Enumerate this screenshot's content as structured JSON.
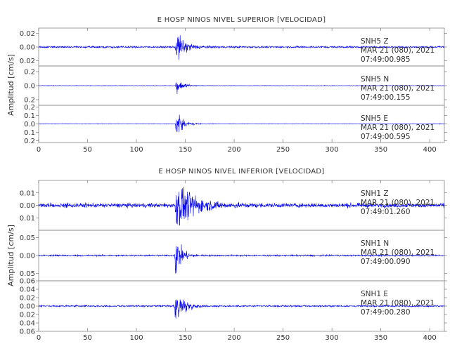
{
  "chart_data": [
    {
      "type": "line",
      "title": "E HOSP NINOS NIVEL SUPERIOR [VELOCIDAD]",
      "ylabel": "Amplitud [cm/s]",
      "xlim": [
        0,
        415
      ],
      "xticks": [
        0,
        50,
        100,
        150,
        200,
        250,
        300,
        350,
        400
      ],
      "line_color": "#0000ee",
      "traces": [
        {
          "station": "SNH5",
          "component": "Z",
          "date": "MAR 21 (080), 2021",
          "time": "07:49:00.985",
          "ylim": [
            -0.028,
            0.028
          ],
          "yticks": [
            0.02,
            0.0,
            -0.02
          ],
          "ytick_labels": [
            "0.02",
            "0.00",
            "0.02"
          ],
          "onset": 140,
          "peak": 0.017,
          "noise": 0.0009,
          "decay": 9
        },
        {
          "station": "SNH5",
          "component": "N",
          "date": "MAR 21 (080), 2021",
          "time": "07:49:00.155",
          "ylim": [
            -0.28,
            0.28
          ],
          "yticks": [
            0.2,
            0.0,
            -0.2
          ],
          "ytick_labels": [
            "0.2",
            "0.0",
            "0.2"
          ],
          "onset": 140,
          "peak": 0.11,
          "noise": 0.002,
          "decay": 6
        },
        {
          "station": "SNH5",
          "component": "E",
          "date": "MAR 21 (080), 2021",
          "time": "07:49:00.595",
          "ylim": [
            -0.22,
            0.22
          ],
          "yticks": [
            0.2,
            0.1,
            0.0,
            -0.1,
            -0.2
          ],
          "ytick_labels": [
            "0.2",
            "0.1",
            "0.0",
            "0.1",
            "0.2"
          ],
          "onset": 140,
          "peak": 0.13,
          "noise": 0.002,
          "decay": 6
        }
      ]
    },
    {
      "type": "line",
      "title": "E HOSP NINOS NIVEL INFERIOR [VELOCIDAD]",
      "ylabel": "Amplitud [cm/s]",
      "xlim": [
        0,
        415
      ],
      "xticks": [
        0,
        50,
        100,
        150,
        200,
        250,
        300,
        350,
        400
      ],
      "line_color": "#0000ee",
      "traces": [
        {
          "station": "SNH1",
          "component": "Z",
          "date": "MAR 21 (080), 2021",
          "time": "07:49:01.260",
          "ylim": [
            -0.02,
            0.02
          ],
          "yticks": [
            0.01,
            0.0,
            -0.01
          ],
          "ytick_labels": [
            "0.01",
            "0.00",
            "0.01"
          ],
          "onset": 139,
          "peak": 0.016,
          "noise": 0.0012,
          "decay": 16
        },
        {
          "station": "SNH1",
          "component": "N",
          "date": "MAR 21 (080), 2021",
          "time": "07:49:00.090",
          "ylim": [
            -0.07,
            0.07
          ],
          "yticks": [
            0.05,
            0.0,
            -0.05
          ],
          "ytick_labels": [
            "0.05",
            "0.00",
            "0.05"
          ],
          "onset": 139,
          "peak": 0.05,
          "noise": 0.0015,
          "decay": 6
        },
        {
          "station": "SNH1",
          "component": "E",
          "date": "MAR 21 (080), 2021",
          "time": "07:49:00.280",
          "ylim": [
            -0.06,
            0.06
          ],
          "yticks": [
            0.06,
            0.04,
            0.02,
            0.0,
            -0.02,
            -0.04,
            -0.06
          ],
          "ytick_labels": [
            "0.06",
            "0.04",
            "0.02",
            "0.00",
            "0.02",
            "0.04",
            "0.06"
          ],
          "onset": 139,
          "peak": 0.045,
          "noise": 0.0012,
          "decay": 7
        }
      ]
    }
  ]
}
